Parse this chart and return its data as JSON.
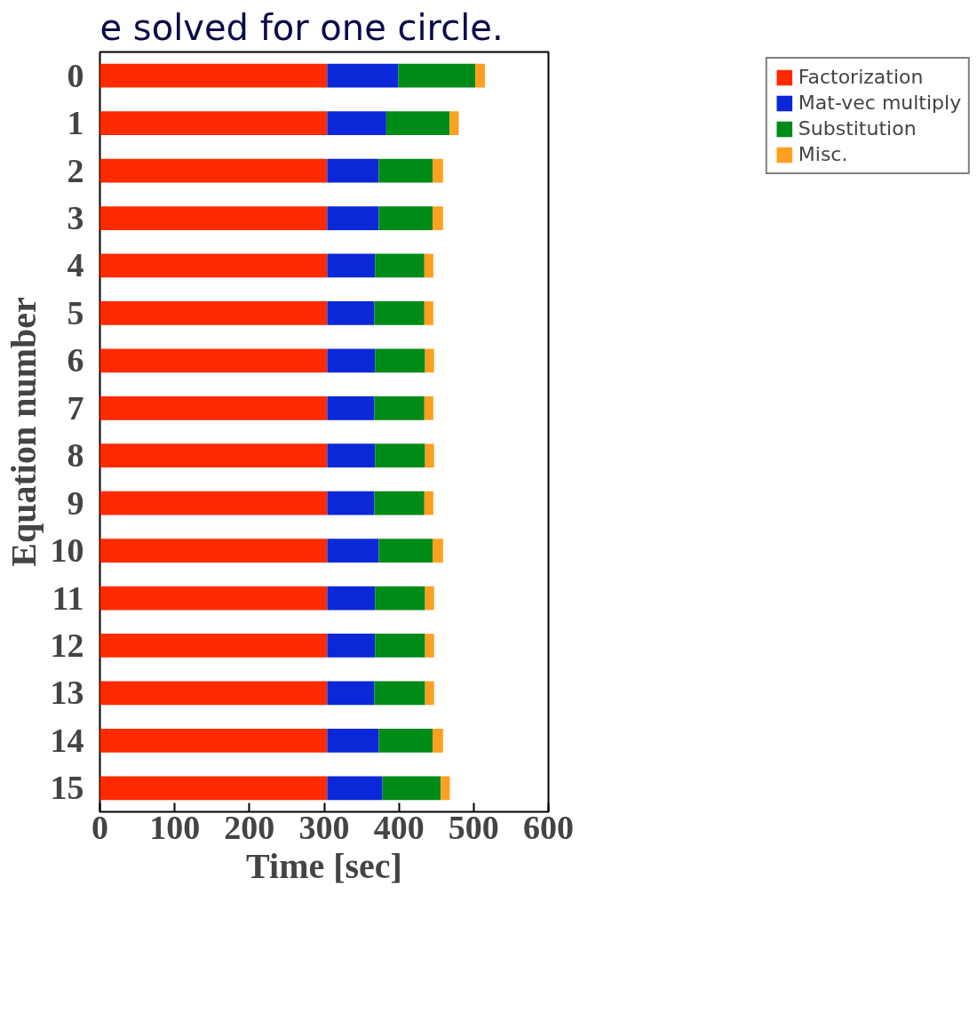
{
  "chart_data": {
    "type": "bar",
    "orientation": "horizontal",
    "stacked": true,
    "annotations": [
      "e solved for one circle."
    ],
    "xlabel": "Time [sec]",
    "ylabel": "Equation number",
    "categories": [
      "0",
      "1",
      "2",
      "3",
      "4",
      "5",
      "6",
      "7",
      "8",
      "9",
      "10",
      "11",
      "12",
      "13",
      "14",
      "15"
    ],
    "series": [
      {
        "name": "Factorization",
        "color": "#ff2a00",
        "values": [
          304,
          304,
          304,
          304,
          304,
          304,
          304,
          304,
          304,
          304,
          304,
          304,
          304,
          304,
          304,
          304
        ]
      },
      {
        "name": "Mat-vec multiply",
        "color": "#0a28d8",
        "values": [
          95,
          79,
          69,
          69,
          64,
          63,
          64,
          63,
          64,
          63,
          69,
          64,
          64,
          63,
          69,
          74
        ]
      },
      {
        "name": "Substitution",
        "color": "#008a18",
        "values": [
          103,
          85,
          72,
          72,
          66,
          67,
          67,
          67,
          67,
          67,
          72,
          67,
          67,
          68,
          72,
          78
        ]
      },
      {
        "name": "Misc.",
        "color": "#ffa020",
        "values": [
          13,
          12,
          14,
          14,
          12,
          12,
          12,
          12,
          12,
          12,
          14,
          12,
          12,
          12,
          14,
          12
        ]
      }
    ],
    "xlim": [
      0,
      600
    ],
    "xticks": [
      0,
      100,
      200,
      300,
      400,
      500,
      600
    ],
    "grid": false,
    "legend": "top right"
  }
}
